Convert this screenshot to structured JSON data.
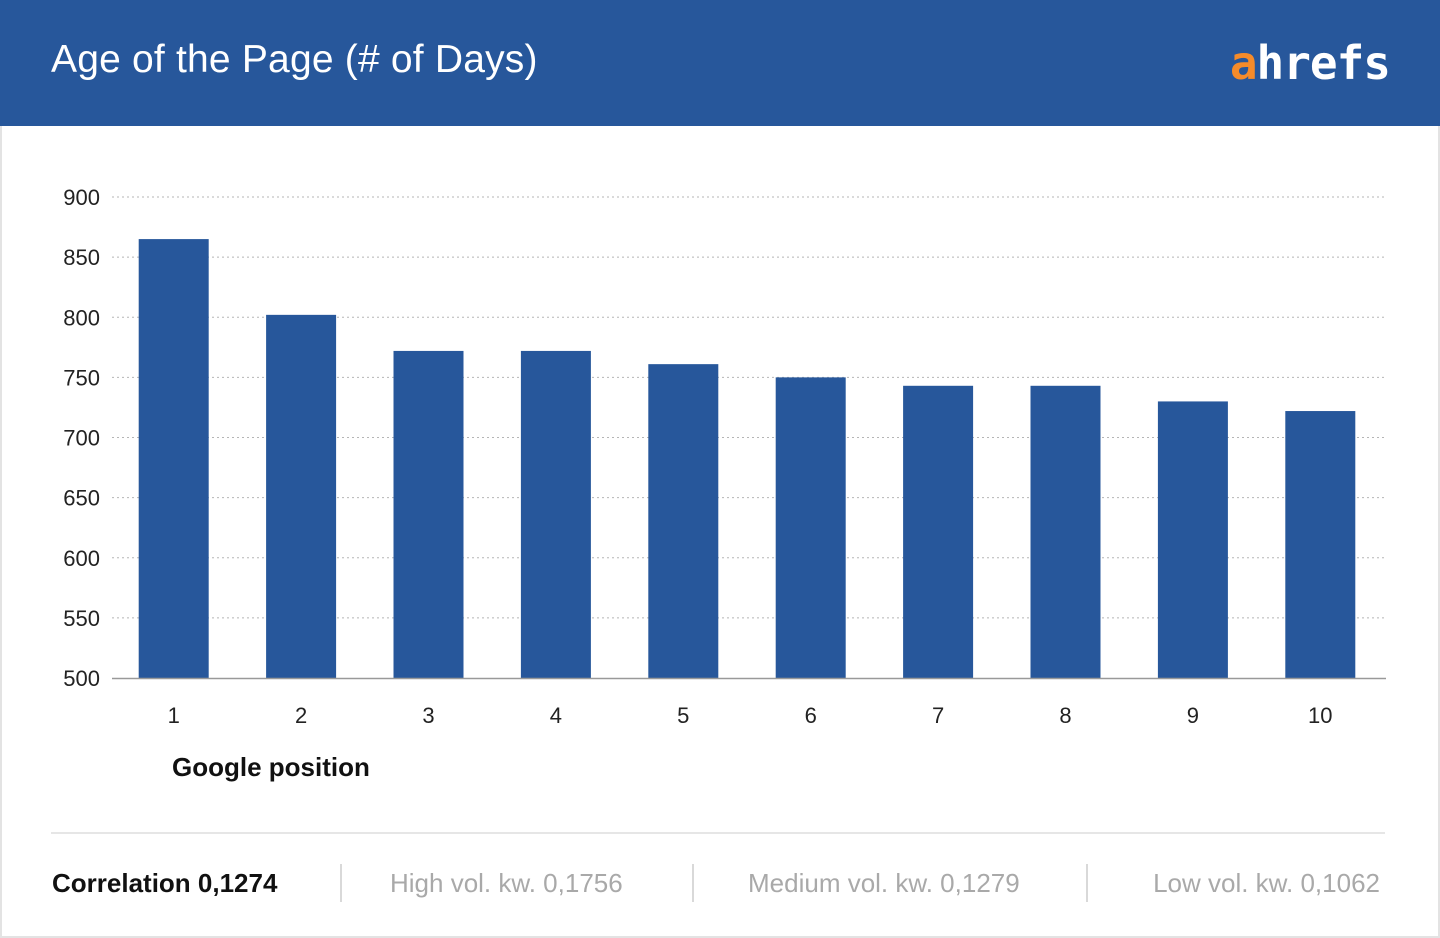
{
  "header": {
    "title": "Age of the Page (# of Days)",
    "logo_accent": "a",
    "logo_rest": "hrefs"
  },
  "colors": {
    "header_bg": "#27579b",
    "bar": "#27579b",
    "logo_accent": "#f58b2a"
  },
  "chart_data": {
    "type": "bar",
    "title": "Age of the Page (# of Days)",
    "xlabel": "Google position",
    "ylabel": "",
    "categories": [
      "1",
      "2",
      "3",
      "4",
      "5",
      "6",
      "7",
      "8",
      "9",
      "10"
    ],
    "values": [
      865,
      802,
      772,
      772,
      761,
      750,
      743,
      743,
      730,
      722
    ],
    "ylim": [
      500,
      900
    ],
    "yticks": [
      "500",
      "550",
      "600",
      "650",
      "700",
      "750",
      "800",
      "850",
      "900"
    ],
    "grid": true,
    "legend": "none"
  },
  "footer": {
    "correlation": "Correlation 0,1274",
    "high": "High vol. kw. 0,1756",
    "medium": "Medium vol. kw. 0,1279",
    "low": "Low vol. kw. 0,1062"
  }
}
